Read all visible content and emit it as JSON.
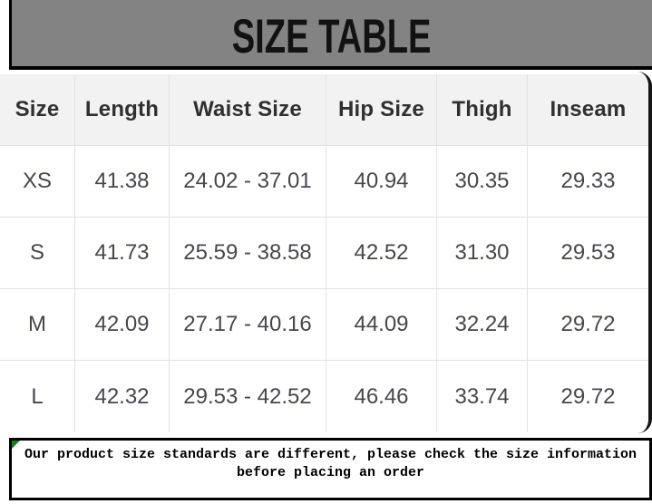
{
  "chart_data": {
    "type": "table",
    "title": "SIZE TABLE",
    "columns": [
      "Size",
      "Length",
      "Waist Size",
      "Hip Size",
      "Thigh",
      "Inseam"
    ],
    "rows": [
      [
        "XS",
        "41.38",
        "24.02 - 37.01",
        "40.94",
        "30.35",
        "29.33"
      ],
      [
        "S",
        "41.73",
        "25.59 - 38.58",
        "42.52",
        "31.30",
        "29.53"
      ],
      [
        "M",
        "42.09",
        "27.17 - 40.16",
        "44.09",
        "32.24",
        "29.72"
      ],
      [
        "L",
        "42.32",
        "29.53 - 42.52",
        "46.46",
        "33.74",
        "29.72"
      ]
    ]
  },
  "footer_note": {
    "line1": "Our product size standards are different, please check the size information",
    "line2": "before placing an order"
  },
  "colors": {
    "title_band_bg": "#838383",
    "title_text": "#121212",
    "header_row_bg": "#f2f2f2",
    "header_text": "#303030",
    "cell_text": "#46474f",
    "grid_line": "#e2e2e2",
    "frame_black": "#000000",
    "artifact_green": "#17821a"
  }
}
